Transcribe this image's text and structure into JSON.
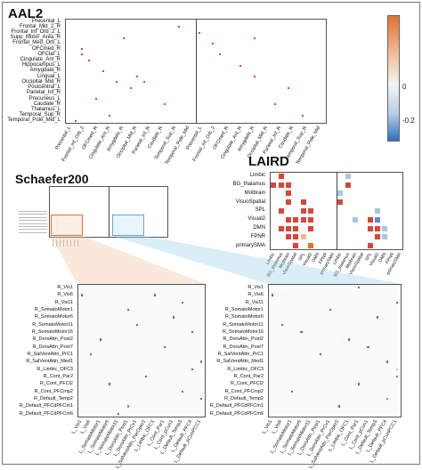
{
  "titles": {
    "aal2": "AAL2",
    "schaefer": "Schaefer200",
    "laird": "LAIRD"
  },
  "colorbar": {
    "ticks": [
      "0",
      "-0.2"
    ],
    "colors": {
      "positive": "#e0742b",
      "neutral": "#f4f4f4",
      "negative": "#2f6fbf"
    }
  },
  "aal2": {
    "rows": [
      "Precental_L",
      "Frontal_Mid_2_R",
      "Frontal_Inf_Orb_2_L",
      "Supp_Motor_Area_R",
      "Frontal_Med_Orb_L",
      "OFCmed_R",
      "OFClat_L",
      "Cingulate_Ant_R",
      "Hippocampus_L",
      "Amygdala_R",
      "Lingual_L",
      "Occipital_Mid_R",
      "Postcentral_L",
      "Parietal_Inf_R",
      "Precuneus_L",
      "Caudate_R",
      "Thalamus_L",
      "Temporal_Sup_R",
      "Temporal_Pole_Mid_L"
    ],
    "cols": [
      "Precental_L",
      "Frontal_Inf_Orb_2",
      "OFCmed_R",
      "Cingulate_Ant_R",
      "Amygdala_R",
      "Occipital_Mid_R",
      "Parietal_Inf_R",
      "Caudate_R",
      "Temporal_Sup_R",
      "Temporal_Pole_Mid"
    ]
  },
  "laird": {
    "rows": [
      "Limbic",
      "BG_thalamus",
      "Motbrain",
      "VisuoSpatial",
      "SPL",
      "Visual2",
      "DMN",
      "FPNR",
      "primarySMA"
    ],
    "cols": [
      "Limbic",
      "BG_thalamus",
      "Motbrain",
      "VisuoSpatial",
      "SPL",
      "Visual2",
      "DMN",
      "FPNR",
      "primarySMA"
    ]
  },
  "schaefer": {
    "rows": [
      "R_Vis1",
      "R_Vis6",
      "R_Vis11",
      "R_SomatoMotor1",
      "R_SomatoMotor6",
      "R_SomatoMotor11",
      "R_SomatoMotor16",
      "R_DorsAttn_Post2",
      "R_DorsAttn_Post7",
      "R_SalVentAttn_PrC1",
      "R_SalVentAttn_Med1",
      "R_Limbic_OFC3",
      "R_Cont_Par2",
      "R_Cont_PFCl2",
      "R_Cont_PFCmp2",
      "R_Default_Temp2",
      "R_Default_PFCdPFCm1",
      "R_Default_PFCdPFCm6"
    ],
    "cols": [
      "L_Vis1",
      "L_Vis6",
      "L_SomatoMotor1",
      "L_SomatoMotor6",
      "L_SomatoMotor11",
      "L_DorsAttn_Post1",
      "L_DorsAttn_PrCv1",
      "L_SalVentAttn_ParOper2",
      "L_Limbic_OFC1",
      "L_Cont_Par1",
      "L_Cont_pCun1",
      "L_Default_Temp3",
      "L_Default_PFC4",
      "L_Default_pCunPCC1"
    ]
  }
}
